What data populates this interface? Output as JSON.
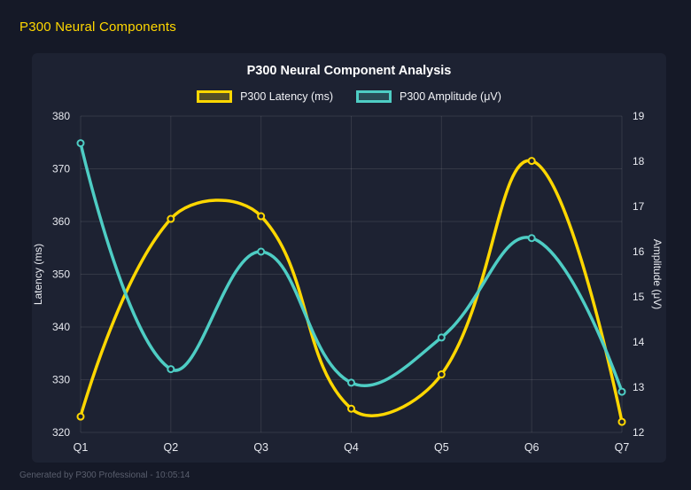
{
  "app": {
    "header_title": "P300 Neural Components",
    "footer_text": "Generated by P300 Professional - 10:05:14"
  },
  "colors": {
    "background": "#151927",
    "panel": "#1d2232",
    "latency_series": "#FFD700",
    "amplitude_series": "#4ECDC4",
    "grid": "rgba(255,255,255,0.10)",
    "tick_text": "#e8eaf0",
    "title_text": "#ffffff",
    "footer_text": "#5a5f6e"
  },
  "chart_data": {
    "type": "line",
    "title": "P300 Neural Component Analysis",
    "categories": [
      "Q1",
      "Q2",
      "Q3",
      "Q4",
      "Q5",
      "Q6",
      "Q7"
    ],
    "series": [
      {
        "name": "P300 Latency (ms)",
        "axis": "left",
        "color": "#FFD700",
        "values": [
          323,
          360.5,
          361,
          324.5,
          331,
          371.5,
          322
        ]
      },
      {
        "name": "P300 Amplitude (μV)",
        "axis": "right",
        "color": "#4ECDC4",
        "values": [
          18.4,
          13.4,
          16.0,
          13.1,
          14.1,
          16.3,
          12.9
        ]
      }
    ],
    "left_axis": {
      "label": "Latency (ms)",
      "min": 320,
      "max": 380,
      "step": 10
    },
    "right_axis": {
      "label": "Amplitude (μV)",
      "min": 12,
      "max": 19,
      "step": 1
    },
    "grid": true,
    "legend_position": "top",
    "line_tension": 0.4
  }
}
